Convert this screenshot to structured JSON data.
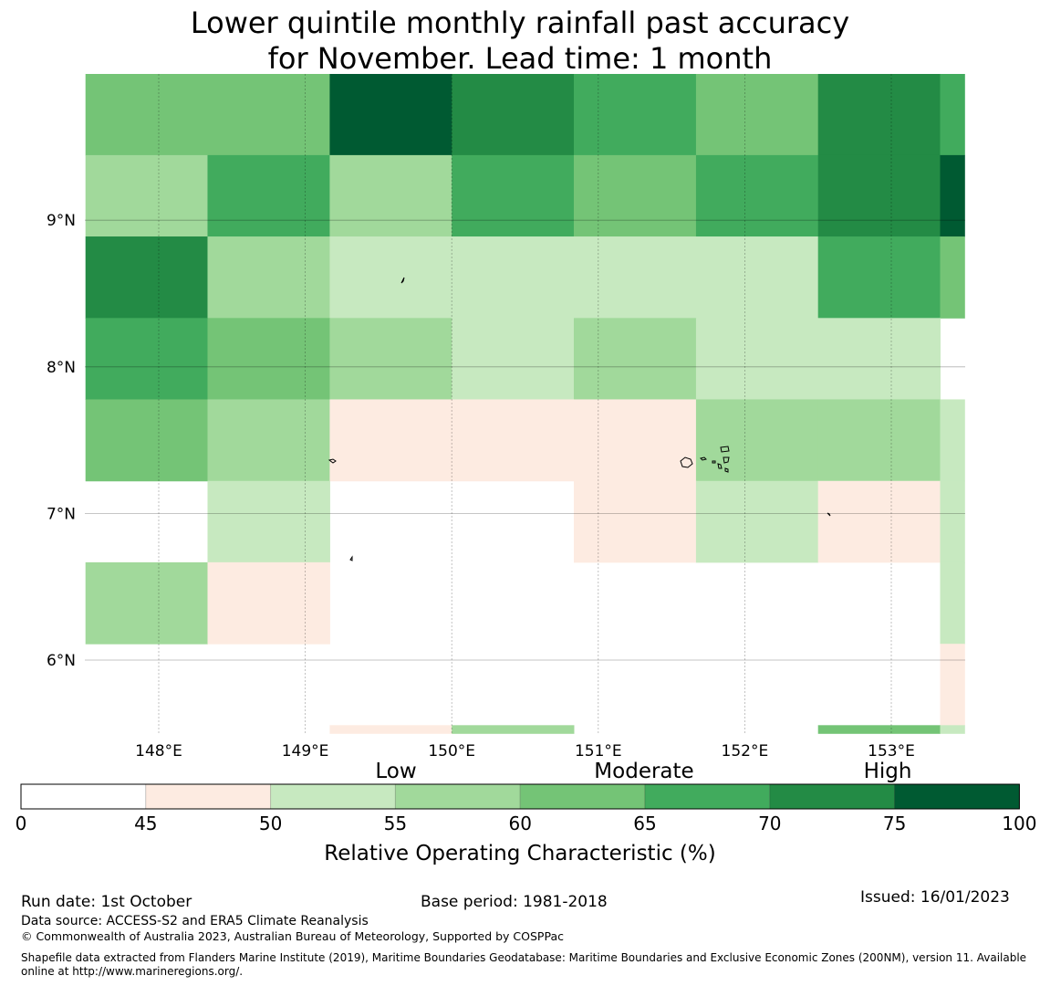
{
  "title": {
    "line1": "Lower quintile monthly rainfall past accuracy",
    "line2": "for November. Lead time: 1 month"
  },
  "map": {
    "lon_range": [
      147.5,
      153.5
    ],
    "lat_range": [
      5.5,
      10.0
    ],
    "lon_ticks": [
      148,
      149,
      150,
      151,
      152,
      153
    ],
    "lon_tick_labels": [
      "148°E",
      "149°E",
      "150°E",
      "151°E",
      "152°E",
      "153°E"
    ],
    "lat_ticks": [
      6,
      7,
      8,
      9
    ],
    "lat_tick_labels": [
      "6°N",
      "7°N",
      "8°N",
      "9°N"
    ],
    "cell_lon_edges": [
      147.5,
      148.333,
      149.167,
      150.0,
      150.833,
      151.667,
      152.5,
      153.333,
      153.5
    ],
    "cell_lat_edges": [
      10.0,
      9.444,
      8.889,
      8.333,
      7.778,
      7.222,
      6.667,
      6.111,
      5.556,
      5.5
    ],
    "roc_grid": [
      [
        62,
        62,
        77,
        72,
        67,
        62,
        72,
        67
      ],
      [
        57,
        67,
        57,
        67,
        62,
        67,
        72,
        77
      ],
      [
        72,
        57,
        52,
        52,
        52,
        52,
        67,
        62
      ],
      [
        67,
        62,
        57,
        52,
        57,
        52,
        52,
        null
      ],
      [
        62,
        57,
        47,
        47,
        47,
        57,
        57,
        52
      ],
      [
        null,
        52,
        null,
        null,
        47,
        52,
        47,
        52
      ],
      [
        57,
        47,
        null,
        null,
        null,
        null,
        null,
        52
      ],
      [
        null,
        null,
        null,
        null,
        null,
        null,
        null,
        47
      ],
      [
        null,
        null,
        47,
        57,
        null,
        null,
        62,
        52
      ]
    ]
  },
  "colorbar": {
    "boundaries": [
      0,
      45,
      50,
      55,
      60,
      65,
      70,
      75,
      100
    ],
    "tick_labels": [
      "0",
      "45",
      "50",
      "55",
      "60",
      "65",
      "70",
      "75",
      "100"
    ],
    "colors": [
      "#ffffff",
      "#fdebe1",
      "#c7e9c0",
      "#a1d99b",
      "#74c476",
      "#41ab5d",
      "#238b45",
      "#005a32"
    ],
    "categories": [
      "Low",
      "Moderate",
      "High"
    ],
    "label": "Relative Operating Characteristic (%)"
  },
  "footer": {
    "run_date": "Run date: 1st October",
    "base_period": "Base period: 1981-2018",
    "issued": "Issued: 16/01/2023",
    "data_source": "Data source: ACCESS-S2 and ERA5 Climate Reanalysis",
    "copyright": "© Commonwealth of Australia 2023, Australian Bureau of Meteorology, Supported by COSPPac",
    "shapefile": "Shapefile data extracted from Flanders Marine Institute (2019), Maritime Boundaries Geodatabase: Maritime Boundaries and Exclusive Economic Zones (200NM), version 11. Available online at http://www.marineregions.org/."
  }
}
